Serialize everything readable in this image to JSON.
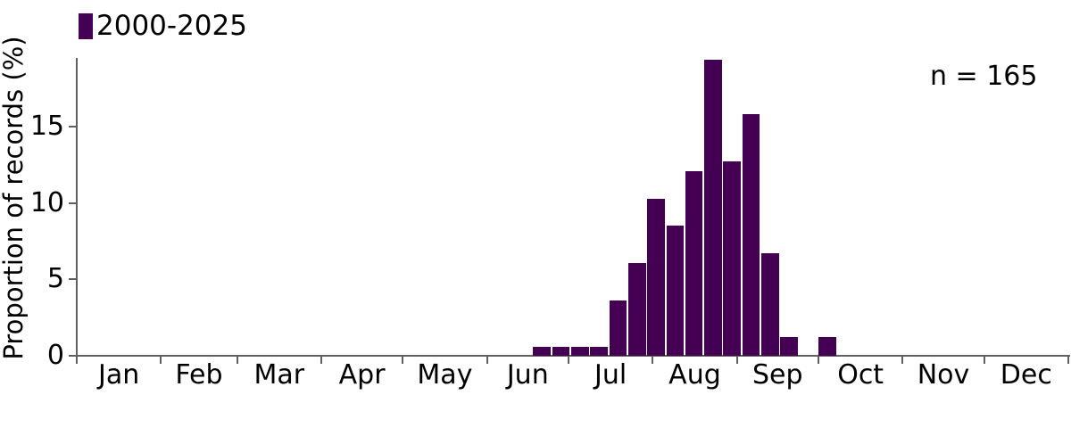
{
  "chart_data": {
    "type": "bar",
    "title": "",
    "xlabel": "",
    "ylabel": "Proportion of records (%)",
    "annotation": "n = 165",
    "n": 165,
    "bar_color": "#440154",
    "axis_color": "#606060",
    "legend_entries": [
      {
        "label": "2000-2025",
        "color": "#440154"
      }
    ],
    "legend_position": "top-left",
    "grid": false,
    "x_axis": {
      "tick_labels": [
        "Jan",
        "Feb",
        "Mar",
        "Apr",
        "May",
        "Jun",
        "Jul",
        "Aug",
        "Sep",
        "Oct",
        "Nov",
        "Dec"
      ],
      "month_days": [
        31,
        28,
        31,
        30,
        31,
        30,
        31,
        31,
        30,
        31,
        30,
        31
      ],
      "total_days": 365
    },
    "y_axis": {
      "ticks": [
        0,
        5,
        10,
        15
      ],
      "range": [
        0,
        19.6
      ]
    },
    "series": [
      {
        "name": "2000-2025",
        "color": "#440154",
        "bin_width_days": 7,
        "bins": [
          {
            "start_day": 169,
            "value": 0.6
          },
          {
            "start_day": 176,
            "value": 0.6
          },
          {
            "start_day": 183,
            "value": 0.6
          },
          {
            "start_day": 190,
            "value": 0.6
          },
          {
            "start_day": 197,
            "value": 3.6
          },
          {
            "start_day": 204,
            "value": 6.1
          },
          {
            "start_day": 211,
            "value": 10.3
          },
          {
            "start_day": 218,
            "value": 8.5
          },
          {
            "start_day": 225,
            "value": 12.1
          },
          {
            "start_day": 232,
            "value": 19.4
          },
          {
            "start_day": 239,
            "value": 12.7
          },
          {
            "start_day": 246,
            "value": 15.8
          },
          {
            "start_day": 253,
            "value": 6.7
          },
          {
            "start_day": 260,
            "value": 1.2
          },
          {
            "start_day": 267,
            "value": 0
          },
          {
            "start_day": 274,
            "value": 1.2
          }
        ]
      }
    ]
  }
}
